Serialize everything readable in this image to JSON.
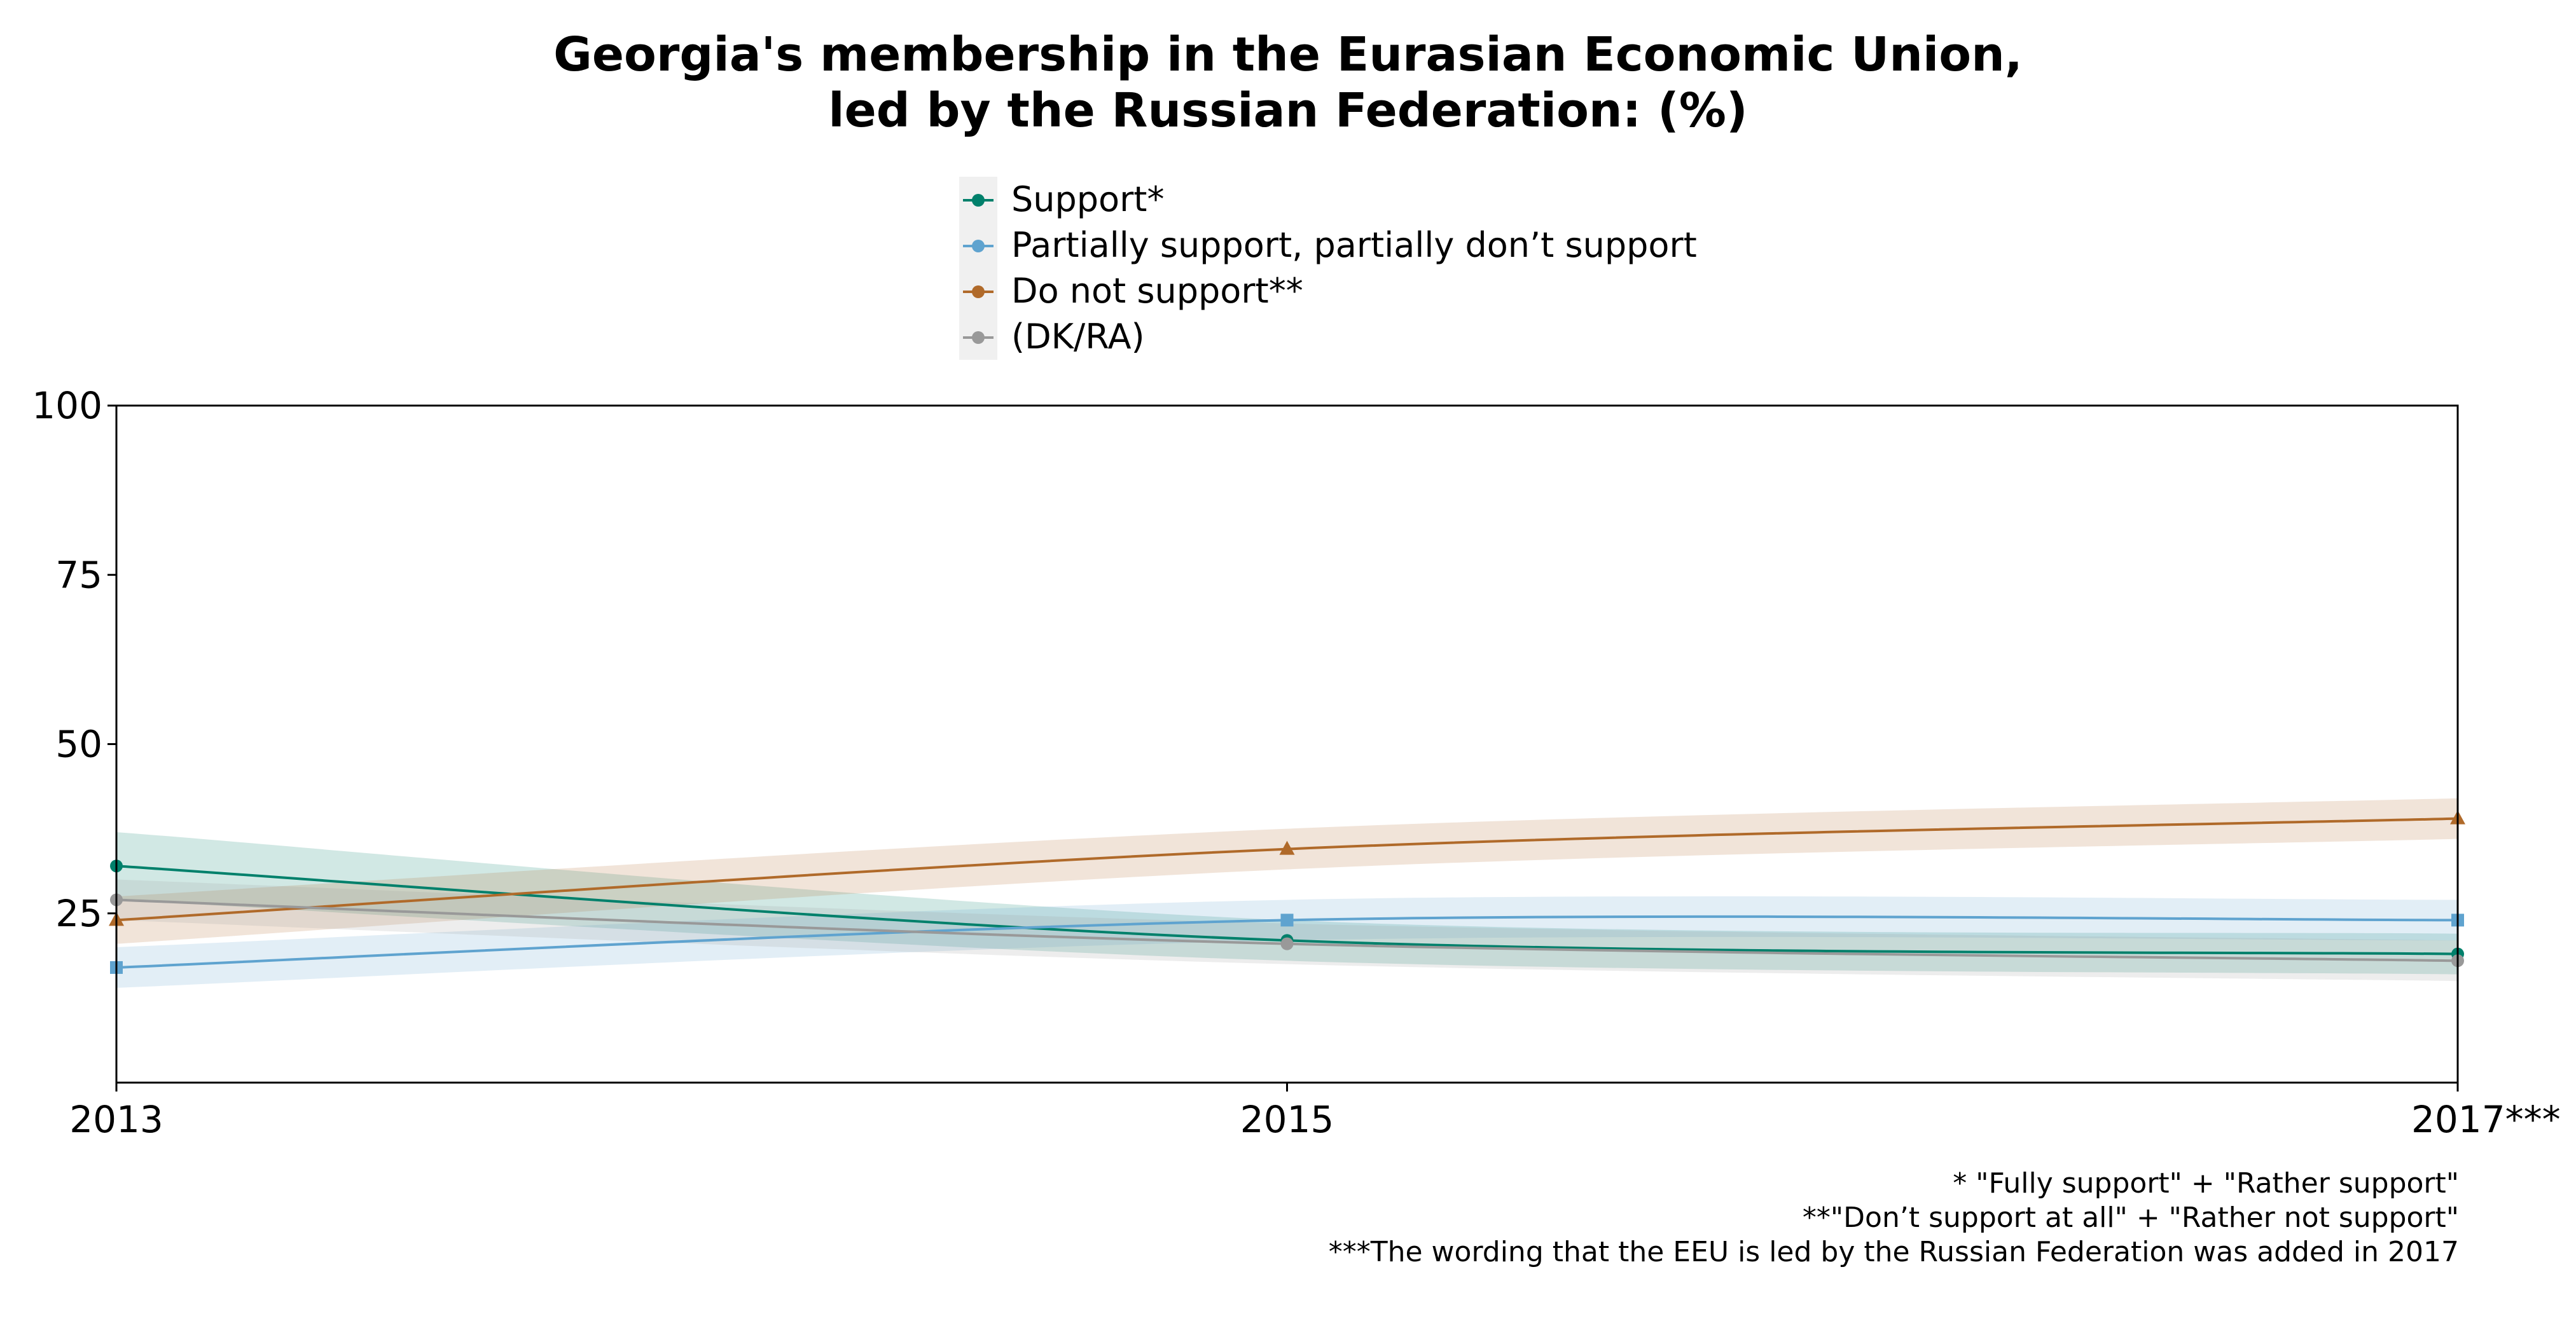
{
  "chart_data": {
    "type": "line",
    "title_lines": [
      "Georgia's membership in the Eurasian Economic Union,",
      "led by the Russian Federation: (%)"
    ],
    "x": [
      2013,
      2015,
      2017
    ],
    "x_tick_labels": [
      "2013",
      "2015",
      "2017***"
    ],
    "y_ticks": [
      25,
      50,
      75,
      100
    ],
    "ylim": [
      0,
      100
    ],
    "legend_placement": "top-center",
    "grid": false,
    "series": [
      {
        "name": "Support*",
        "color": "#00806b",
        "marker": "circle",
        "values": [
          32,
          21,
          19
        ],
        "ci_low": [
          27,
          18,
          16
        ],
        "ci_high": [
          37,
          24,
          22
        ]
      },
      {
        "name": "Partially support, partially don’t support",
        "color": "#5fa3cf",
        "marker": "square",
        "values": [
          17,
          24,
          24
        ],
        "ci_low": [
          14,
          21,
          21
        ],
        "ci_high": [
          20,
          27,
          27
        ]
      },
      {
        "name": "Do not support**",
        "color": "#b06a2a",
        "marker": "triangle",
        "values": [
          24,
          34.5,
          39
        ],
        "ci_low": [
          20.5,
          31.5,
          36
        ],
        "ci_high": [
          27.5,
          37.5,
          42
        ]
      },
      {
        "name": "(DK/RA)",
        "color": "#999999",
        "marker": "circle",
        "values": [
          27,
          20.5,
          18
        ],
        "ci_low": [
          24,
          17.5,
          15
        ],
        "ci_high": [
          30,
          23.5,
          21
        ]
      }
    ],
    "footnotes": [
      "* \"Fully support\" + \"Rather support\"",
      "**\"Don’t support at all\" + \"Rather not support\"",
      "***The wording that the EEU is led by the Russian Federation was added in 2017"
    ]
  }
}
